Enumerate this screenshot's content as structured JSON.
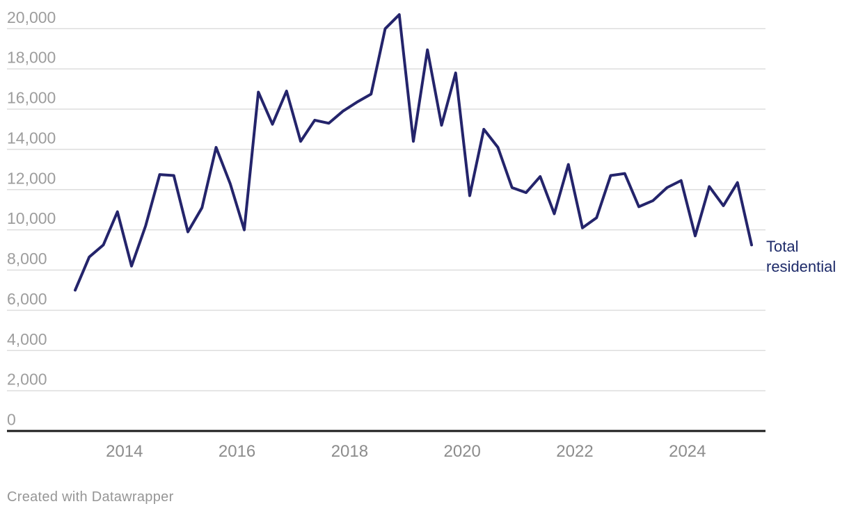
{
  "chart_data": {
    "type": "line",
    "title": "",
    "grid": "horizontal",
    "legend_position": "end-of-line-label",
    "x_tick_labels": [
      "2014",
      "2016",
      "2018",
      "2020",
      "2022",
      "2024"
    ],
    "y_ticks": [
      0,
      2000,
      4000,
      6000,
      8000,
      10000,
      12000,
      14000,
      16000,
      18000,
      20000
    ],
    "y_tick_labels": [
      "0",
      "2,000",
      "4,000",
      "6,000",
      "8,000",
      "10,000",
      "12,000",
      "14,000",
      "16,000",
      "18,000",
      "20,000"
    ],
    "ylim": [
      0,
      20700
    ],
    "xlabel": "",
    "ylabel": "",
    "frequency": "quarterly",
    "categories": [
      "2013 Q1",
      "2013 Q2",
      "2013 Q3",
      "2013 Q4",
      "2014 Q1",
      "2014 Q2",
      "2014 Q3",
      "2014 Q4",
      "2015 Q1",
      "2015 Q2",
      "2015 Q3",
      "2015 Q4",
      "2016 Q1",
      "2016 Q2",
      "2016 Q3",
      "2016 Q4",
      "2017 Q1",
      "2017 Q2",
      "2017 Q3",
      "2017 Q4",
      "2018 Q1",
      "2018 Q2",
      "2018 Q3",
      "2018 Q4",
      "2019 Q1",
      "2019 Q2",
      "2019 Q3",
      "2019 Q4",
      "2020 Q1",
      "2020 Q2",
      "2020 Q3",
      "2020 Q4",
      "2021 Q1",
      "2021 Q2",
      "2021 Q3",
      "2021 Q4",
      "2022 Q1",
      "2022 Q2",
      "2022 Q3",
      "2022 Q4",
      "2023 Q1",
      "2023 Q2",
      "2023 Q3",
      "2023 Q4",
      "2024 Q1",
      "2024 Q2",
      "2024 Q3",
      "2024 Q4",
      "2025 Q1"
    ],
    "series": [
      {
        "name": "Total residential",
        "values": [
          7000,
          8650,
          9250,
          10900,
          8200,
          10200,
          12750,
          12700,
          9900,
          11100,
          14100,
          12300,
          10000,
          16850,
          15250,
          16900,
          14400,
          15450,
          15300,
          15900,
          16350,
          16750,
          20000,
          20700,
          14400,
          18950,
          15200,
          17800,
          11700,
          15000,
          14100,
          12100,
          11850,
          12650,
          10800,
          13250,
          10100,
          10600,
          12700,
          12800,
          11150,
          11450,
          12100,
          12450,
          9700,
          12150,
          11200,
          12350,
          9250
        ]
      }
    ],
    "colors": {
      "line": "#24246b",
      "series_label_text": "#1d2a69",
      "gridline": "#dddddd",
      "baseline_axis": "#1a1a1a",
      "y_tick_text": "#9d9d9d",
      "x_tick_text": "#8c8c8c"
    }
  },
  "series_label_lines": {
    "line1": "Total",
    "line2": "residential"
  },
  "footer": {
    "credit": "Created with Datawrapper"
  }
}
